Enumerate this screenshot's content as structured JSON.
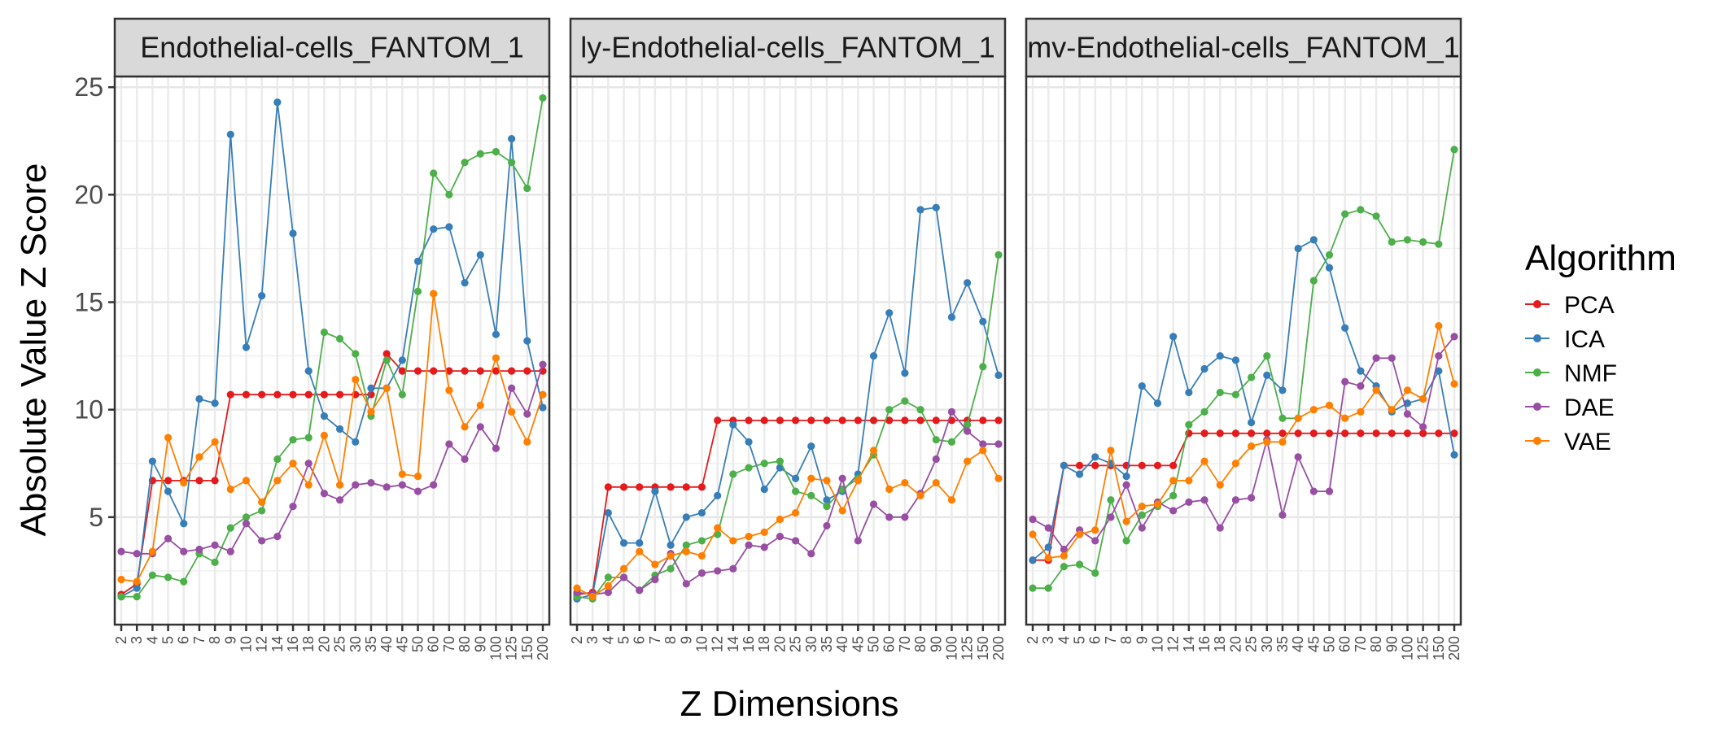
{
  "chart_data": {
    "type": "line",
    "facets": [
      "Endothelial-cells_FANTOM_1",
      "ly-Endothelial-cells_FANTOM_1",
      "mv-Endothelial-cells_FANTOM_1"
    ],
    "x": [
      "2",
      "3",
      "4",
      "5",
      "6",
      "7",
      "8",
      "9",
      "10",
      "12",
      "14",
      "16",
      "18",
      "20",
      "25",
      "30",
      "35",
      "40",
      "45",
      "50",
      "60",
      "70",
      "80",
      "90",
      "100",
      "125",
      "150",
      "200"
    ],
    "xlabel": "Z Dimensions",
    "ylabel": "Absolute Value Z Score",
    "ylim": [
      0,
      25.5
    ],
    "yticks": [
      5,
      10,
      15,
      20,
      25
    ],
    "grid": true,
    "legend": {
      "title": "Algorithm",
      "position": "right"
    },
    "colors": {
      "PCA": "#e41a1c",
      "ICA": "#377eb8",
      "NMF": "#4daf4a",
      "DAE": "#984ea3",
      "VAE": "#ff7f00"
    },
    "panels": [
      {
        "facet": "Endothelial-cells_FANTOM_1",
        "series": [
          {
            "name": "PCA",
            "values": [
              1.4,
              1.9,
              6.7,
              6.7,
              6.7,
              6.7,
              6.7,
              10.7,
              10.7,
              10.7,
              10.7,
              10.7,
              10.7,
              10.7,
              10.7,
              10.7,
              10.7,
              12.6,
              11.8,
              11.8,
              11.8,
              11.8,
              11.8,
              11.8,
              11.8,
              11.8,
              11.8,
              11.8
            ]
          },
          {
            "name": "ICA",
            "values": [
              1.3,
              1.7,
              7.6,
              6.2,
              4.7,
              10.5,
              10.3,
              22.8,
              12.9,
              15.3,
              24.3,
              18.2,
              11.8,
              9.7,
              9.1,
              8.5,
              11.0,
              11.0,
              12.3,
              16.9,
              18.4,
              18.5,
              15.9,
              17.2,
              13.5,
              22.6,
              13.2,
              10.1
            ]
          },
          {
            "name": "NMF",
            "values": [
              1.3,
              1.3,
              2.3,
              2.2,
              2.0,
              3.3,
              2.9,
              4.5,
              5.0,
              5.3,
              7.7,
              8.6,
              8.7,
              13.6,
              13.3,
              12.6,
              9.7,
              12.3,
              10.7,
              15.5,
              21.0,
              20.0,
              21.5,
              21.9,
              22.0,
              21.5,
              20.3,
              24.5
            ]
          },
          {
            "name": "DAE",
            "values": [
              3.4,
              3.3,
              3.3,
              4.0,
              3.4,
              3.5,
              3.7,
              3.4,
              4.7,
              3.9,
              4.1,
              5.5,
              7.5,
              6.1,
              5.8,
              6.5,
              6.6,
              6.4,
              6.5,
              6.2,
              6.5,
              8.4,
              7.7,
              9.2,
              8.2,
              11.0,
              9.8,
              12.1
            ]
          },
          {
            "name": "VAE",
            "values": [
              2.1,
              2.0,
              3.4,
              8.7,
              6.6,
              7.8,
              8.5,
              6.3,
              6.7,
              5.7,
              6.7,
              7.5,
              6.5,
              8.8,
              6.5,
              11.4,
              9.9,
              11.0,
              7.0,
              6.9,
              15.4,
              10.9,
              9.2,
              10.2,
              12.4,
              9.9,
              8.5,
              10.7
            ]
          }
        ]
      },
      {
        "facet": "ly-Endothelial-cells_FANTOM_1",
        "series": [
          {
            "name": "PCA",
            "values": [
              1.4,
              1.5,
              6.4,
              6.4,
              6.4,
              6.4,
              6.4,
              6.4,
              6.4,
              9.5,
              9.5,
              9.5,
              9.5,
              9.5,
              9.5,
              9.5,
              9.5,
              9.5,
              9.5,
              9.5,
              9.5,
              9.5,
              9.5,
              9.5,
              9.5,
              9.5,
              9.5,
              9.5
            ]
          },
          {
            "name": "ICA",
            "values": [
              1.2,
              1.4,
              5.2,
              3.8,
              3.8,
              6.2,
              3.7,
              5.0,
              5.2,
              6.0,
              9.3,
              8.5,
              6.3,
              7.3,
              6.8,
              8.3,
              5.8,
              6.2,
              7.0,
              12.5,
              14.5,
              11.7,
              19.3,
              19.4,
              14.3,
              15.9,
              14.1,
              11.6
            ]
          },
          {
            "name": "NMF",
            "values": [
              1.3,
              1.2,
              2.2,
              2.2,
              1.6,
              2.3,
              2.6,
              3.7,
              3.9,
              4.2,
              7.0,
              7.3,
              7.5,
              7.6,
              6.2,
              6.0,
              5.5,
              6.3,
              6.8,
              7.9,
              10.0,
              10.4,
              10.0,
              8.6,
              8.5,
              9.3,
              12.0,
              17.2
            ]
          },
          {
            "name": "DAE",
            "values": [
              1.5,
              1.4,
              1.5,
              2.2,
              1.6,
              2.1,
              3.3,
              1.9,
              2.4,
              2.5,
              2.6,
              3.7,
              3.6,
              4.1,
              3.9,
              3.3,
              4.6,
              6.8,
              3.9,
              5.6,
              5.0,
              5.0,
              6.1,
              7.7,
              9.9,
              9.0,
              8.4,
              8.4
            ]
          },
          {
            "name": "VAE",
            "values": [
              1.7,
              1.3,
              1.8,
              2.6,
              3.4,
              2.8,
              3.2,
              3.4,
              3.2,
              4.5,
              3.9,
              4.1,
              4.3,
              4.9,
              5.2,
              6.8,
              6.7,
              5.3,
              6.7,
              8.1,
              6.3,
              6.6,
              6.0,
              6.6,
              5.8,
              7.6,
              8.1,
              6.8
            ]
          }
        ]
      },
      {
        "facet": "mv-Endothelial-cells_FANTOM_1",
        "series": [
          {
            "name": "PCA",
            "values": [
              3.0,
              3.0,
              7.4,
              7.4,
              7.4,
              7.4,
              7.4,
              7.4,
              7.4,
              7.4,
              8.9,
              8.9,
              8.9,
              8.9,
              8.9,
              8.9,
              8.9,
              8.9,
              8.9,
              8.9,
              8.9,
              8.9,
              8.9,
              8.9,
              8.9,
              8.9,
              8.9,
              8.9
            ]
          },
          {
            "name": "ICA",
            "values": [
              3.0,
              3.6,
              7.4,
              7.0,
              7.8,
              7.5,
              6.9,
              11.1,
              10.3,
              13.4,
              10.8,
              11.9,
              12.5,
              12.3,
              9.4,
              11.6,
              10.9,
              17.5,
              17.9,
              16.6,
              13.8,
              11.8,
              11.1,
              9.9,
              10.3,
              10.5,
              11.8,
              7.9
            ]
          },
          {
            "name": "NMF",
            "values": [
              1.7,
              1.7,
              2.7,
              2.8,
              2.4,
              5.8,
              3.9,
              5.1,
              5.5,
              6.0,
              9.3,
              9.9,
              10.8,
              10.7,
              11.5,
              12.5,
              9.6,
              9.6,
              16.0,
              17.2,
              19.1,
              19.3,
              19.0,
              17.8,
              17.9,
              17.8,
              17.7,
              22.1
            ]
          },
          {
            "name": "DAE",
            "values": [
              4.9,
              4.5,
              3.5,
              4.4,
              3.9,
              5.0,
              6.5,
              4.5,
              5.7,
              5.3,
              5.7,
              5.8,
              4.5,
              5.8,
              5.9,
              8.6,
              5.1,
              7.8,
              6.2,
              6.2,
              11.3,
              11.1,
              12.4,
              12.4,
              9.8,
              9.2,
              12.5,
              13.4
            ]
          },
          {
            "name": "VAE",
            "values": [
              4.2,
              3.1,
              3.2,
              4.2,
              4.4,
              8.1,
              4.8,
              5.5,
              5.6,
              6.7,
              6.7,
              7.6,
              6.5,
              7.5,
              8.3,
              8.5,
              8.5,
              9.6,
              10.0,
              10.2,
              9.6,
              9.9,
              10.9,
              10.0,
              10.9,
              10.5,
              13.9,
              11.2
            ]
          }
        ]
      }
    ]
  }
}
